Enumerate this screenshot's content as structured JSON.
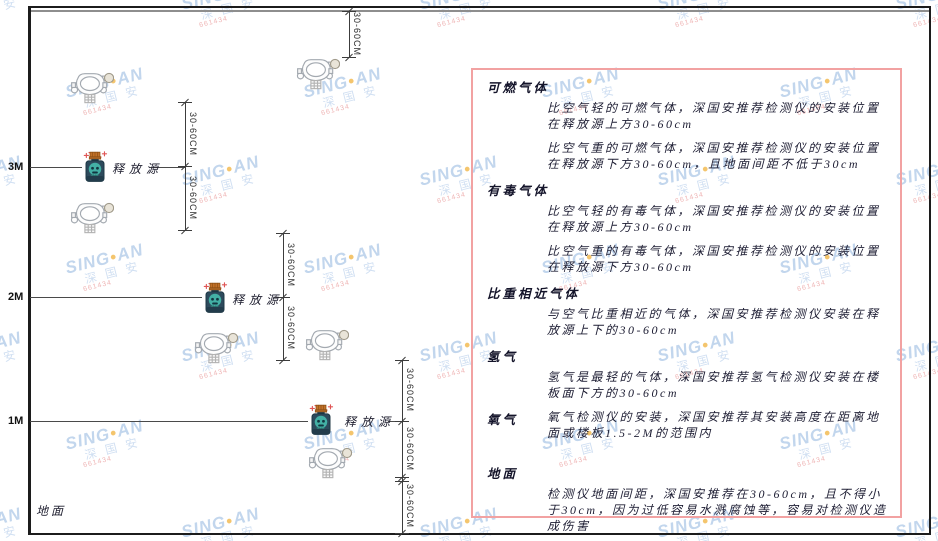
{
  "watermark": {
    "brand_prefix": "SING",
    "brand_suffix": "AN",
    "dot": "●",
    "cjk": "深 国 安",
    "code": "661434"
  },
  "diagram": {
    "axis_labels": [
      "3M",
      "2M",
      "1M"
    ],
    "dim_label": "30-60CM",
    "source_label": "释放源",
    "ground_label": "地面",
    "icons": {
      "detector": "gas-detector-icon",
      "source": "release-source-bottle-icon"
    }
  },
  "panel": {
    "sections": [
      {
        "heading": "可燃气体",
        "paragraphs": [
          "比空气轻的可燃气体，深国安推荐检测仪的安装位置在释放源上方30-60cm",
          "比空气重的可燃气体，深国安推荐检测仪的安装位置在释放源下方30-60cm，且地面间距不低于30cm"
        ]
      },
      {
        "heading": "有毒气体",
        "paragraphs": [
          "比空气轻的有毒气体，深国安推荐检测仪的安装位置在释放源上方30-60cm",
          "比空气重的有毒气体，深国安推荐检测仪的安装位置在释放源下方30-60cm"
        ]
      },
      {
        "heading": "比重相近气体",
        "paragraphs": [
          "与空气比重相近的气体，深国安推荐检测仪安装在释放源上下的30-60cm"
        ]
      },
      {
        "heading": "氢气",
        "paragraphs": [
          "氢气是最轻的气体，深国安推荐氢气检测仪安装在楼板面下方的30-60cm"
        ]
      },
      {
        "heading": "氧气",
        "inline": true,
        "paragraphs": [
          "氧气检测仪的安装，深国安推荐其安装高度在距离地面或楼板1.5-2M的范围内"
        ]
      },
      {
        "heading": "地面",
        "gap_top": true,
        "paragraphs": [
          "检测仪地面间距，深国安推荐在30-60cm，且不得小于30cm，因为过低容易水溅腐蚀等，容易对检测仪造成伤害"
        ]
      }
    ]
  },
  "colors": {
    "panel_border": "#F2A2A2",
    "frame": "#1C1C1C",
    "ceiling_line": "#8E8E8E",
    "dimension_line": "#3C3C3C",
    "text": "#1D1D33",
    "watermark_blue": "#85AEDB",
    "watermark_dot": "#F0B23C",
    "watermark_code_red": "#E27878",
    "bottle_body": "#2D4A5C",
    "bottle_cap": "#C27128",
    "bottle_face": "#43B0A5",
    "detector_outline": "#A3A9B0"
  }
}
